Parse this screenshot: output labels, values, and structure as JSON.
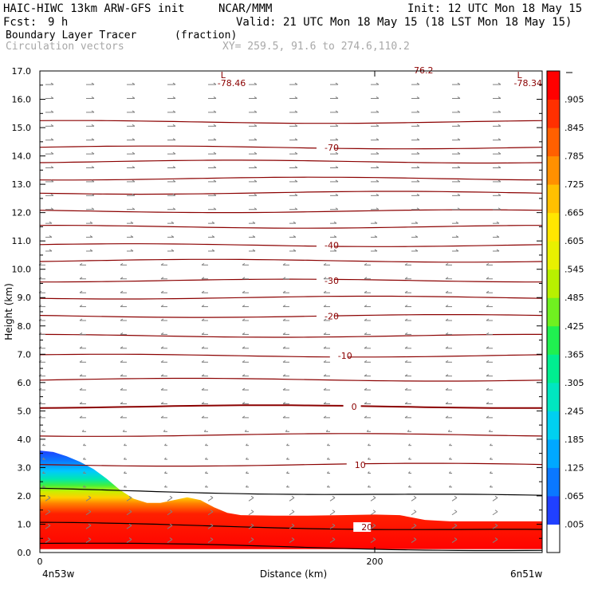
{
  "header": {
    "model": "HAIC-HIWC 13km ARW-GFS init",
    "center": "NCAR/MMM",
    "init": "Init: 12 UTC Mon 18 May 15",
    "fcst_label": "Fcst:",
    "fcst_value": "9 h",
    "valid": "Valid: 21 UTC Mon 18 May 15 (18 LST Mon 18 May 15)",
    "field": "Boundary Layer Tracer",
    "field_units": "(fraction)",
    "vectors": "Circulation vectors",
    "xy": "XY= 259.5, 91.6 to 274.6,110.2"
  },
  "chart_data": {
    "type": "heatmap",
    "xlabel": "Distance (km)",
    "ylabel": "Height (km)",
    "xlim": [
      0,
      300
    ],
    "ylim": [
      0,
      17
    ],
    "x_ticks": [
      0,
      200
    ],
    "x_tick_labels": [
      "0",
      "200"
    ],
    "x_end_labels": [
      "4n53w",
      "6n51w"
    ],
    "y_ticks": [
      0,
      1,
      2,
      3,
      4,
      5,
      6,
      7,
      8,
      9,
      10,
      11,
      12,
      13,
      14,
      15,
      16,
      17
    ],
    "y_tick_labels": [
      "0.0",
      "1.0",
      "2.0",
      "3.0",
      "4.0",
      "5.0",
      "6.0",
      "7.0",
      "8.0",
      "9.0",
      "10.0",
      "11.0",
      "12.0",
      "13.0",
      "14.0",
      "15.0",
      "16.0",
      "17.0"
    ],
    "tracer_top_km": [
      [
        0,
        3.6
      ],
      [
        8,
        3.55
      ],
      [
        16,
        3.4
      ],
      [
        24,
        3.2
      ],
      [
        32,
        2.95
      ],
      [
        40,
        2.6
      ],
      [
        48,
        2.2
      ],
      [
        56,
        1.9
      ],
      [
        64,
        1.75
      ],
      [
        72,
        1.75
      ],
      [
        80,
        1.85
      ],
      [
        88,
        1.95
      ],
      [
        96,
        1.85
      ],
      [
        104,
        1.6
      ],
      [
        112,
        1.4
      ],
      [
        120,
        1.32
      ],
      [
        140,
        1.3
      ],
      [
        160,
        1.3
      ],
      [
        180,
        1.32
      ],
      [
        200,
        1.34
      ],
      [
        215,
        1.32
      ],
      [
        230,
        1.15
      ],
      [
        245,
        1.1
      ],
      [
        260,
        1.1
      ],
      [
        280,
        1.1
      ],
      [
        300,
        1.1
      ]
    ],
    "colorbar_levels": [
      ".005",
      ".065",
      ".125",
      ".185",
      ".245",
      ".305",
      ".365",
      ".425",
      ".485",
      ".545",
      ".605",
      ".665",
      ".725",
      ".785",
      ".845",
      ".905"
    ],
    "colorbar_colors": [
      "#ffffff",
      "#2040ff",
      "#0a78ff",
      "#00a8ff",
      "#00d0f0",
      "#00e6c0",
      "#00ee90",
      "#20f050",
      "#70f020",
      "#b8f000",
      "#e8f000",
      "#ffe600",
      "#ffc000",
      "#ff9000",
      "#ff6000",
      "#ff3000",
      "#ff0000"
    ],
    "temperature_contours": [
      {
        "z": 0.9,
        "label": "20",
        "label_x": 192
      },
      {
        "z": 3.1,
        "label": "10",
        "label_x": 188
      },
      {
        "z": 5.15,
        "label": "0",
        "label_x": 186
      },
      {
        "z": 6.95,
        "label": "-10",
        "label_x": 178
      },
      {
        "z": 8.35,
        "label": "-20",
        "label_x": 170
      },
      {
        "z": 9.6,
        "label": "-30",
        "label_x": 170
      },
      {
        "z": 10.85,
        "label": "-40",
        "label_x": 170
      },
      {
        "z": 14.3,
        "label": "-70",
        "label_x": 170
      }
    ],
    "contour_levels_km": [
      0.2,
      0.9,
      2.1,
      3.1,
      4.15,
      5.15,
      6.1,
      6.95,
      7.65,
      8.35,
      9.0,
      9.6,
      10.3,
      10.85,
      11.5,
      12.05,
      12.7,
      13.2,
      13.8,
      14.3,
      15.2
    ],
    "lows": [
      {
        "label": "L",
        "value": "-78.46",
        "x": 108
      },
      {
        "label": "L",
        "value": "-78.34",
        "x": 285
      }
    ],
    "low_top_value": "-76.2",
    "contour_color": "#8b0000",
    "vector_color": "#808080"
  }
}
